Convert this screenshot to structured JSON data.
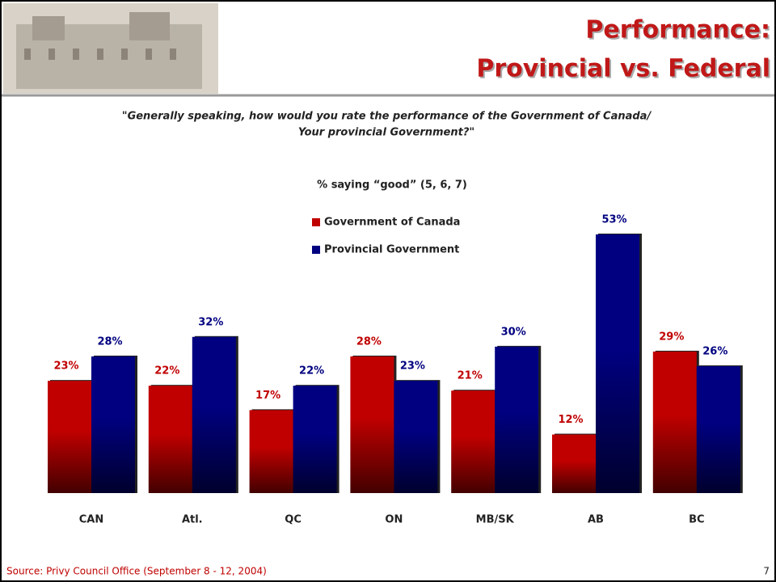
{
  "header": {
    "title_lines": [
      "Performance:",
      "Provincial vs. Federal"
    ]
  },
  "question_lines": [
    "\"Generally speaking, how would you rate the performance of the Government of Canada/",
    "Your provincial Government?\""
  ],
  "chart_data": {
    "type": "bar",
    "title": "% saying “good” (5, 6, 7)",
    "categories": [
      "CAN",
      "Atl.",
      "QC",
      "ON",
      "MB/SK",
      "AB",
      "BC"
    ],
    "series": [
      {
        "name": "Government of Canada",
        "color": "#c00000",
        "values": [
          23,
          22,
          17,
          28,
          21,
          12,
          29
        ],
        "value_labels": [
          "23%",
          "22%",
          "17%",
          "28%",
          "21%",
          "12%",
          "29%"
        ]
      },
      {
        "name": "Provincial Government",
        "color": "#000080",
        "values": [
          28,
          32,
          22,
          23,
          30,
          53,
          26
        ],
        "value_labels": [
          "28%",
          "32%",
          "22%",
          "23%",
          "30%",
          "53%",
          "26%"
        ]
      }
    ]
  },
  "footer": {
    "source": "Source: Privy Council Office (September 8 - 12, 2004)",
    "page_number": "7"
  }
}
